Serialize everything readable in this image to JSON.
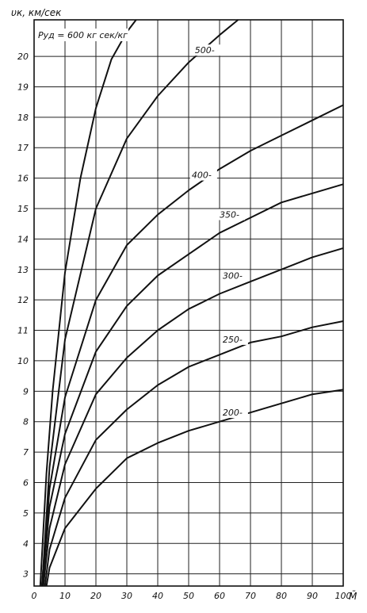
{
  "chart_data": {
    "type": "line",
    "title": "",
    "ylabel": "υк, км/сек",
    "xlabel": "M̄",
    "xlim": [
      0,
      100
    ],
    "ylim": [
      2.6,
      21.2
    ],
    "grid": true,
    "x_ticks": [
      "0",
      "10",
      "20",
      "30",
      "40",
      "50",
      "60",
      "70",
      "80",
      "90",
      "100"
    ],
    "y_ticks": [
      "3",
      "4",
      "5",
      "6",
      "7",
      "8",
      "9",
      "10",
      "11",
      "12",
      "13",
      "14",
      "15",
      "16",
      "17",
      "18",
      "19",
      "20"
    ],
    "series": [
      {
        "name": "Pуд = 600 кг сек/кг",
        "label": "Pуд = 600 кг сек/кг",
        "x": [
          2,
          4,
          6,
          10,
          15,
          20,
          25,
          30,
          33
        ],
        "y": [
          2.6,
          6.3,
          9.0,
          12.9,
          16.0,
          18.3,
          19.9,
          20.8,
          21.2
        ]
      },
      {
        "name": "500",
        "label": "500-",
        "x": [
          2.6,
          5,
          10,
          20,
          30,
          40,
          50,
          60,
          66
        ],
        "y": [
          2.6,
          6.5,
          10.7,
          15.0,
          17.3,
          18.7,
          19.8,
          20.7,
          21.2
        ]
      },
      {
        "name": "400",
        "label": "400-",
        "x": [
          2.5,
          5,
          10,
          20,
          30,
          40,
          50,
          60,
          70,
          80,
          90,
          100
        ],
        "y": [
          2.6,
          5.8,
          8.8,
          12.0,
          13.8,
          14.8,
          15.6,
          16.3,
          16.9,
          17.4,
          17.9,
          18.4
        ]
      },
      {
        "name": "350",
        "label": "350-",
        "x": [
          2.7,
          5,
          10,
          20,
          30,
          40,
          50,
          60,
          70,
          80,
          90,
          100
        ],
        "y": [
          2.6,
          5.2,
          7.6,
          10.3,
          11.8,
          12.8,
          13.5,
          14.2,
          14.7,
          15.2,
          15.5,
          15.8
        ]
      },
      {
        "name": "300",
        "label": "300-",
        "x": [
          3.0,
          5,
          10,
          20,
          30,
          40,
          50,
          60,
          70,
          80,
          90,
          100
        ],
        "y": [
          2.6,
          4.5,
          6.6,
          8.9,
          10.1,
          11.0,
          11.7,
          12.2,
          12.6,
          13.0,
          13.4,
          13.7
        ]
      },
      {
        "name": "250",
        "label": "250-",
        "x": [
          3.5,
          5,
          10,
          20,
          30,
          40,
          50,
          60,
          70,
          80,
          90,
          100
        ],
        "y": [
          2.6,
          3.8,
          5.5,
          7.4,
          8.4,
          9.2,
          9.8,
          10.2,
          10.6,
          10.8,
          11.1,
          11.3
        ]
      },
      {
        "name": "200",
        "label": "200-",
        "x": [
          4.0,
          5,
          10,
          20,
          30,
          40,
          50,
          60,
          70,
          80,
          90,
          100
        ],
        "y": [
          2.6,
          3.2,
          4.5,
          5.8,
          6.8,
          7.3,
          7.7,
          8.0,
          8.3,
          8.6,
          8.9,
          9.05
        ]
      }
    ]
  }
}
